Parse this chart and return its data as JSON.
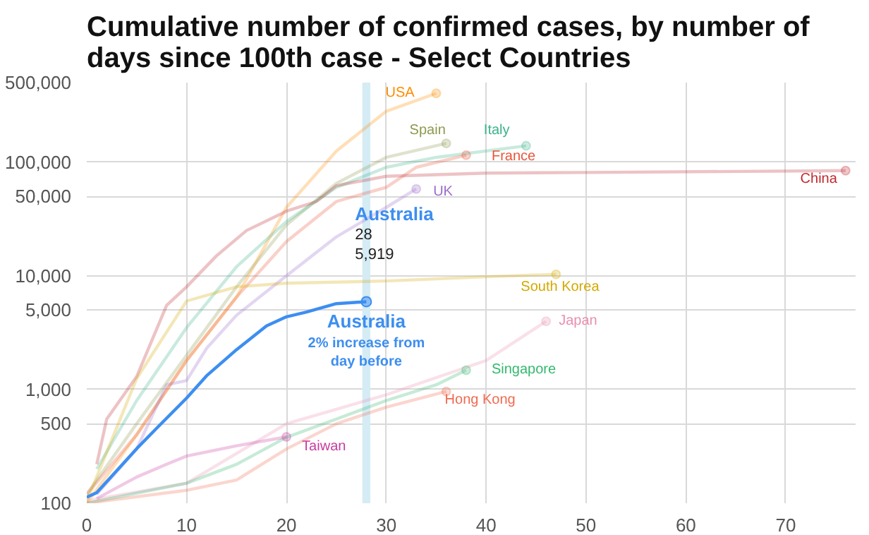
{
  "chart_data": {
    "type": "line",
    "title": "Cumulative number of confirmed cases, by number of days since 100th case - Select Countries",
    "log": true,
    "grid": true,
    "xlim": [
      0,
      77
    ],
    "xticks": [
      0,
      10,
      20,
      30,
      40,
      50,
      60,
      70
    ],
    "ylim": [
      100,
      500000
    ],
    "yticks": [
      {
        "value": 100,
        "label": "100"
      },
      {
        "value": 500,
        "label": "500"
      },
      {
        "value": 1000,
        "label": "1,000"
      },
      {
        "value": 5000,
        "label": "5,000"
      },
      {
        "value": 10000,
        "label": "10,000"
      },
      {
        "value": 50000,
        "label": "50,000"
      },
      {
        "value": 100000,
        "label": "100,000"
      },
      {
        "value": 500000,
        "label": "500,000"
      }
    ],
    "bands": [
      {
        "axis": "x",
        "from": 27.6,
        "to": 28.4,
        "color": "#d5ecf5"
      }
    ],
    "annotations": [
      {
        "text": "Australia\n28\n5,919",
        "x": 28,
        "y": 5919
      },
      {
        "text": "Australia\n2% increase from\nday before",
        "x": 28,
        "y": 5919
      }
    ],
    "series": [
      {
        "name": "USA",
        "color": "#ff8c00",
        "x": [
          0,
          5,
          10,
          15,
          20,
          25,
          30,
          35
        ],
        "values": [
          100,
          400,
          1800,
          6500,
          40000,
          125000,
          280000,
          402000
        ]
      },
      {
        "name": "Spain",
        "color": "#8c9a4e",
        "x": [
          0,
          5,
          10,
          15,
          20,
          25,
          30,
          36
        ],
        "values": [
          120,
          500,
          2000,
          8000,
          28000,
          65000,
          110000,
          146000
        ]
      },
      {
        "name": "Italy",
        "color": "#3cb38a",
        "x": [
          1,
          5,
          10,
          15,
          20,
          25,
          30,
          35,
          44
        ],
        "values": [
          200,
          800,
          3500,
          12000,
          30000,
          60000,
          90000,
          110000,
          139000
        ]
      },
      {
        "name": "France",
        "color": "#e8553a",
        "x": [
          0,
          5,
          10,
          15,
          20,
          25,
          30,
          33,
          38
        ],
        "values": [
          120,
          400,
          1800,
          6500,
          20000,
          45000,
          60000,
          90000,
          115000
        ]
      },
      {
        "name": "China",
        "color": "#c0282d",
        "x": [
          1,
          2,
          5,
          8,
          10,
          13,
          16,
          20,
          23,
          25,
          30,
          40,
          50,
          76
        ],
        "values": [
          220,
          550,
          1300,
          5500,
          8000,
          15000,
          25000,
          37000,
          45000,
          62000,
          75000,
          80000,
          81000,
          84000
        ]
      },
      {
        "name": "UK",
        "color": "#9c6ccc",
        "x": [
          1,
          5,
          8,
          10,
          12,
          15,
          20,
          25,
          30,
          33
        ],
        "values": [
          120,
          300,
          1100,
          1200,
          2300,
          4500,
          10000,
          22000,
          40000,
          58000
        ]
      },
      {
        "name": "South Korea",
        "color": "#d4a800",
        "x": [
          0,
          5,
          10,
          15,
          20,
          30,
          40,
          47
        ],
        "values": [
          104,
          1250,
          6000,
          8000,
          8600,
          9000,
          9800,
          10300
        ]
      },
      {
        "name": "Japan",
        "color": "#e88fb0",
        "x": [
          0,
          10,
          20,
          30,
          40,
          46
        ],
        "values": [
          105,
          150,
          500,
          900,
          1800,
          3980
        ]
      },
      {
        "name": "Singapore",
        "color": "#33b86e",
        "x": [
          0,
          10,
          15,
          20,
          25,
          30,
          35,
          38
        ],
        "values": [
          100,
          150,
          220,
          380,
          550,
          800,
          1100,
          1480
        ]
      },
      {
        "name": "Hong Kong",
        "color": "#f06a50",
        "x": [
          0,
          10,
          15,
          20,
          25,
          30,
          36
        ],
        "values": [
          100,
          130,
          160,
          300,
          500,
          700,
          960
        ]
      },
      {
        "name": "Taiwan",
        "color": "#c83ca0",
        "x": [
          1,
          5,
          8,
          10,
          15,
          20
        ],
        "values": [
          110,
          170,
          220,
          260,
          320,
          383
        ]
      },
      {
        "color": "#3d8ef0",
        "x": [
          0,
          1,
          5,
          7,
          10,
          12,
          15,
          18,
          20,
          22,
          25,
          28
        ],
        "values": [
          113,
          124,
          302,
          457,
          841,
          1320,
          2240,
          3630,
          4360,
          4800,
          5690,
          5919
        ]
      }
    ]
  }
}
